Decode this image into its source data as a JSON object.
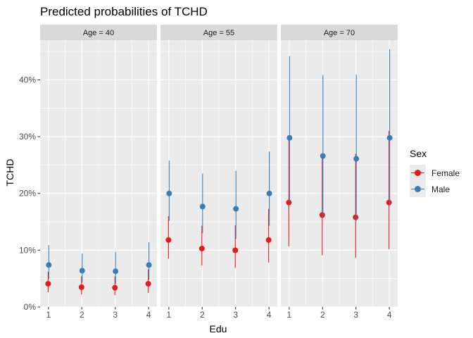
{
  "title": "Predicted probabilities of TCHD",
  "chart_data": {
    "type": "scatter",
    "title": "Predicted probabilities of TCHD",
    "xlabel": "Edu",
    "ylabel": "TCHD",
    "x": [
      1,
      2,
      3,
      4
    ],
    "x_ticks": [
      "1",
      "2",
      "3",
      "4"
    ],
    "ylim": [
      0,
      0.47
    ],
    "y_ticks": [
      0,
      0.1,
      0.2,
      0.3,
      0.4
    ],
    "y_tick_labels": [
      "0%",
      "10%",
      "20%",
      "30%",
      "40%"
    ],
    "grid": true,
    "legend_title": "Sex",
    "legend_position": "right",
    "facets": [
      {
        "label": "Age = 40",
        "series": [
          {
            "name": "Female",
            "values": [
              0.041,
              0.035,
              0.034,
              0.041
            ],
            "lower": [
              0.026,
              0.022,
              0.021,
              0.025
            ],
            "upper": [
              0.062,
              0.054,
              0.054,
              0.066
            ]
          },
          {
            "name": "Male",
            "values": [
              0.074,
              0.064,
              0.063,
              0.074
            ],
            "lower": [
              0.05,
              0.043,
              0.041,
              0.048
            ],
            "upper": [
              0.109,
              0.094,
              0.097,
              0.114
            ]
          }
        ]
      },
      {
        "label": "Age = 55",
        "series": [
          {
            "name": "Female",
            "values": [
              0.118,
              0.103,
              0.1,
              0.118
            ],
            "lower": [
              0.085,
              0.073,
              0.069,
              0.078
            ],
            "upper": [
              0.16,
              0.143,
              0.144,
              0.173
            ]
          },
          {
            "name": "Male",
            "values": [
              0.2,
              0.177,
              0.173,
              0.2
            ],
            "lower": [
              0.152,
              0.13,
              0.12,
              0.143
            ],
            "upper": [
              0.258,
              0.235,
              0.24,
              0.274
            ]
          }
        ]
      },
      {
        "label": "Age = 70",
        "series": [
          {
            "name": "Female",
            "values": [
              0.184,
              0.162,
              0.158,
              0.184
            ],
            "lower": [
              0.107,
              0.091,
              0.087,
              0.102
            ],
            "upper": [
              0.298,
              0.268,
              0.27,
              0.31
            ]
          },
          {
            "name": "Male",
            "values": [
              0.298,
              0.266,
              0.261,
              0.298
            ],
            "lower": [
              0.185,
              0.16,
              0.152,
              0.182
            ],
            "upper": [
              0.442,
              0.409,
              0.409,
              0.454
            ]
          }
        ]
      }
    ],
    "colors": {
      "Female": "#E41A1C",
      "Male": "#377EB8"
    }
  }
}
